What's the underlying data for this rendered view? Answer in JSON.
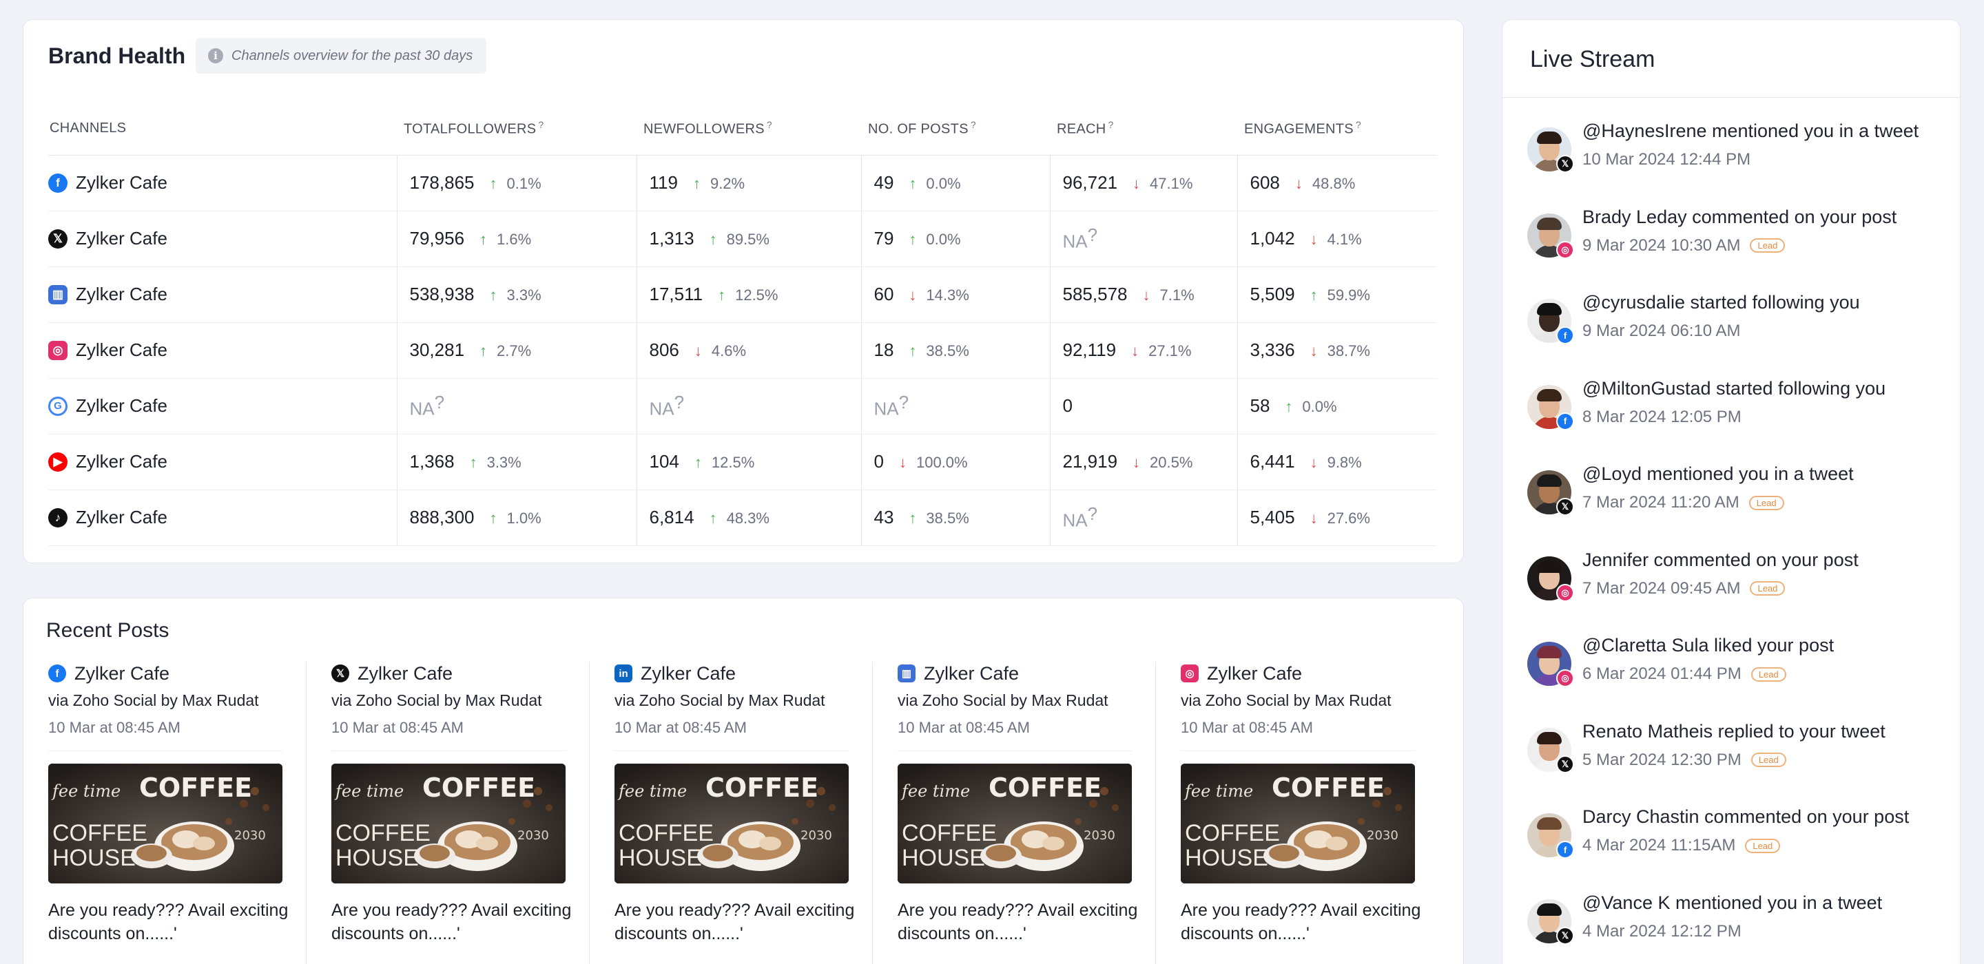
{
  "brand_health": {
    "title": "Brand Health",
    "subtitle": "Channels overview for the past 30 days",
    "columns": [
      "CHANNELS",
      "TOTALFOLLOWERS",
      "NEWFOLLOWERS",
      "NO. OF POSTS",
      "REACH",
      "ENGAGEMENTS"
    ],
    "help_mark": "?",
    "rows": [
      {
        "icon": "facebook-icon",
        "color": "#1877f2",
        "glyph": "f",
        "channel": "Zylker Cafe",
        "cells": [
          {
            "v": "178,865",
            "d": "up",
            "p": "0.1%"
          },
          {
            "v": "119",
            "d": "up",
            "p": "9.2%"
          },
          {
            "v": "49",
            "d": "up",
            "p": "0.0%"
          },
          {
            "v": "96,721",
            "d": "down",
            "p": "47.1%"
          },
          {
            "v": "608",
            "d": "down",
            "p": "48.8%"
          }
        ]
      },
      {
        "icon": "x-icon",
        "color": "#111111",
        "glyph": "𝕏",
        "channel": "Zylker Cafe",
        "cells": [
          {
            "v": "79,956",
            "d": "up",
            "p": "1.6%"
          },
          {
            "v": "1,313",
            "d": "up",
            "p": "89.5%"
          },
          {
            "v": "79",
            "d": "up",
            "p": "0.0%"
          },
          {
            "v": "NA",
            "na": true
          },
          {
            "v": "1,042",
            "d": "down",
            "p": "4.1%"
          }
        ]
      },
      {
        "icon": "business-icon",
        "color": "#3d6fd8",
        "glyph": "▥",
        "channel": "Zylker Cafe",
        "cells": [
          {
            "v": "538,938",
            "d": "up",
            "p": "3.3%"
          },
          {
            "v": "17,511",
            "d": "up",
            "p": "12.5%"
          },
          {
            "v": "60",
            "d": "down",
            "p": "14.3%"
          },
          {
            "v": "585,578",
            "d": "down",
            "p": "7.1%"
          },
          {
            "v": "5,509",
            "d": "up",
            "p": "59.9%"
          }
        ]
      },
      {
        "icon": "instagram-icon",
        "color": "#e1306c",
        "glyph": "◎",
        "channel": "Zylker Cafe",
        "cells": [
          {
            "v": "30,281",
            "d": "up",
            "p": "2.7%"
          },
          {
            "v": "806",
            "d": "down",
            "p": "4.6%"
          },
          {
            "v": "18",
            "d": "up",
            "p": "38.5%"
          },
          {
            "v": "92,119",
            "d": "down",
            "p": "27.1%"
          },
          {
            "v": "3,336",
            "d": "down",
            "p": "38.7%"
          }
        ]
      },
      {
        "icon": "google-icon",
        "color": "#4285f4",
        "glyph": "G",
        "channel": "Zylker Cafe",
        "cells": [
          {
            "v": "NA",
            "na": true
          },
          {
            "v": "NA",
            "na": true
          },
          {
            "v": "NA",
            "na": true
          },
          {
            "v": "0"
          },
          {
            "v": "58",
            "d": "up",
            "p": "0.0%"
          }
        ]
      },
      {
        "icon": "youtube-icon",
        "color": "#ff0000",
        "glyph": "▶",
        "channel": "Zylker Cafe",
        "cells": [
          {
            "v": "1,368",
            "d": "up",
            "p": "3.3%"
          },
          {
            "v": "104",
            "d": "up",
            "p": "12.5%"
          },
          {
            "v": "0",
            "d": "down",
            "p": "100.0%"
          },
          {
            "v": "21,919",
            "d": "down",
            "p": "20.5%"
          },
          {
            "v": "6,441",
            "d": "down",
            "p": "9.8%"
          }
        ]
      },
      {
        "icon": "tiktok-icon",
        "color": "#111111",
        "glyph": "♪",
        "channel": "Zylker Cafe",
        "cells": [
          {
            "v": "888,300",
            "d": "up",
            "p": "1.0%"
          },
          {
            "v": "6,814",
            "d": "up",
            "p": "48.3%"
          },
          {
            "v": "43",
            "d": "up",
            "p": "38.5%"
          },
          {
            "v": "NA",
            "na": true
          },
          {
            "v": "5,405",
            "d": "down",
            "p": "27.6%"
          }
        ]
      }
    ]
  },
  "recent_posts": {
    "title": "Recent Posts",
    "posts": [
      {
        "icon": "facebook-icon",
        "color": "#1877f2",
        "glyph": "f",
        "name": "Zylker Cafe",
        "via": "via Zoho Social by Max Rudat",
        "date": "10 Mar at 08:45 AM",
        "text": "Are you ready??? Avail exciting discounts on......'",
        "img": {
          "script": "fee time",
          "big": "COFFEE",
          "house": "COFFEE HOUSE"
        }
      },
      {
        "icon": "x-icon",
        "color": "#111111",
        "glyph": "𝕏",
        "name": "Zylker Cafe",
        "via": "via Zoho Social by Max Rudat",
        "date": "10 Mar at 08:45 AM",
        "text": "Are you ready??? Avail exciting discounts on......'",
        "img": {
          "script": "fee time",
          "big": "COFFEE",
          "house": "COFFEE HOUSE"
        }
      },
      {
        "icon": "linkedin-icon",
        "color": "#0a66c2",
        "glyph": "in",
        "name": "Zylker Cafe",
        "via": "via Zoho Social by Max Rudat",
        "date": "10 Mar at 08:45 AM",
        "text": "Are you ready??? Avail exciting discounts on......'",
        "img": {
          "script": "fee time",
          "big": "COFFEE",
          "house": "COFFEE HOUSE"
        }
      },
      {
        "icon": "business-icon",
        "color": "#3d6fd8",
        "glyph": "▥",
        "name": "Zylker Cafe",
        "via": "via Zoho Social by Max Rudat",
        "date": "10 Mar at 08:45 AM",
        "text": "Are you ready??? Avail exciting discounts on......'",
        "img": {
          "script": "fee time",
          "big": "COFFEE",
          "house": "COFFEE HOUSE"
        }
      },
      {
        "icon": "instagram-icon",
        "color": "#e1306c",
        "glyph": "◎",
        "name": "Zylker Cafe",
        "via": "via Zoho Social by Max Rudat",
        "date": "10 Mar at 08:45 AM",
        "text": "Are you ready??? Avail exciting discounts on......'",
        "img": {
          "script": "fee time",
          "big": "COFFEE",
          "house": "COFFEE HOUSE"
        }
      }
    ]
  },
  "live_stream": {
    "title": "Live Stream",
    "events": [
      {
        "text": "@HaynesIrene mentioned you in a tweet",
        "date": "10 Mar 2024 12:44 PM",
        "network": "x-icon",
        "badge_color": "#111111",
        "badge_glyph": "𝕏",
        "lead": "",
        "skin": "#e3b894",
        "hair": "#2a1c14",
        "shirt": "#8a6f5a",
        "bg": "#dfe6ee"
      },
      {
        "text": "Brady Leday commented on your post",
        "date": "9 Mar 2024 10:30 AM",
        "network": "instagram-icon",
        "badge_color": "#e1306c",
        "badge_glyph": "◎",
        "lead": "Lead",
        "skin": "#d9ad8c",
        "hair": "#4a3a2e",
        "shirt": "#3b3b3b",
        "bg": "#cfd3d6"
      },
      {
        "text": "@cyrusdalie started following you",
        "date": "9 Mar 2024 06:10 AM",
        "network": "facebook-icon",
        "badge_color": "#1877f2",
        "badge_glyph": "f",
        "lead": "",
        "skin": "#3b2a22",
        "hair": "#111111",
        "shirt": "#e8e8e8",
        "bg": "#ececec"
      },
      {
        "text": "@MiltonGustad started following you",
        "date": "8 Mar 2024 12:05 PM",
        "network": "facebook-icon",
        "badge_color": "#1877f2",
        "badge_glyph": "f",
        "lead": "",
        "skin": "#e2b596",
        "hair": "#3a2619",
        "shirt": "#c0392b",
        "bg": "#e9e3dc"
      },
      {
        "text": "@Loyd mentioned you in a tweet",
        "date": "7 Mar 2024 11:20 AM",
        "network": "x-icon",
        "badge_color": "#111111",
        "badge_glyph": "𝕏",
        "lead": "Lead",
        "skin": "#b07a55",
        "hair": "#1a1a1a",
        "shirt": "#2c2c2c",
        "bg": "#6a5a4c"
      },
      {
        "text": "Jennifer commented on your post",
        "date": "7 Mar 2024 09:45 AM",
        "network": "instagram-icon",
        "badge_color": "#e1306c",
        "badge_glyph": "◎",
        "lead": "Lead",
        "skin": "#e6c1a5",
        "hair": "#1c1414",
        "shirt": "#2a1f1f",
        "bg": "#1e1a1a"
      },
      {
        "text": "@Claretta Sula liked your post",
        "date": "6 Mar 2024 01:44 PM",
        "network": "instagram-icon",
        "badge_color": "#e1306c",
        "badge_glyph": "◎",
        "lead": "Lead",
        "skin": "#e9c3a6",
        "hair": "#7a2d3c",
        "shirt": "#6d4aa8",
        "bg": "#4a5ca8"
      },
      {
        "text": "Renato Matheis replied to your tweet",
        "date": "5 Mar 2024 12:30 PM",
        "network": "x-icon",
        "badge_color": "#111111",
        "badge_glyph": "𝕏",
        "lead": "Lead",
        "skin": "#d8a584",
        "hair": "#2a1a12",
        "shirt": "#f2f2f2",
        "bg": "#eeeeee"
      },
      {
        "text": "Darcy Chastin commented on your post",
        "date": "4 Mar 2024 11:15AM",
        "network": "facebook-icon",
        "badge_color": "#1877f2",
        "badge_glyph": "f",
        "lead": "Lead",
        "skin": "#e7bf9f",
        "hair": "#6b4a30",
        "shirt": "#d8cbb8",
        "bg": "#d9cfc2"
      },
      {
        "text": "@Vance K mentioned you in a tweet",
        "date": "4 Mar 2024 12:12 PM",
        "network": "x-icon",
        "badge_color": "#111111",
        "badge_glyph": "𝕏",
        "lead": "",
        "skin": "#e8c0a0",
        "hair": "#141414",
        "shirt": "#2d2d2d",
        "bg": "#e8e8e8"
      }
    ]
  }
}
